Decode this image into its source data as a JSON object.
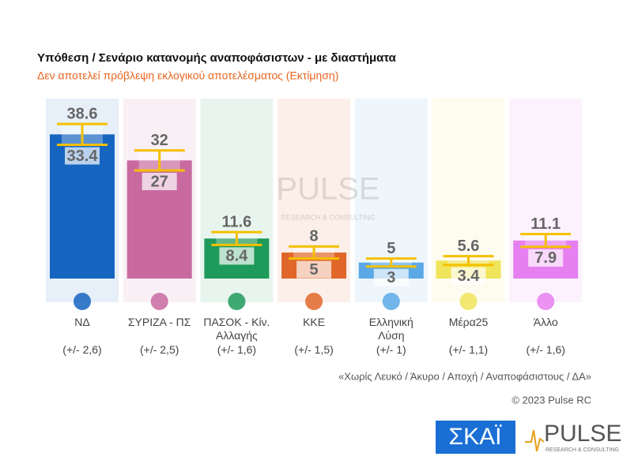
{
  "chart_data": {
    "type": "interval-bar",
    "title": "Υπόθεση / Σενάριο κατανομής αναποφάσιστων - με διαστήματα",
    "subtitle": "Δεν αποτελεί πρόβλεψη εκλογικού αποτελέσματος   (Εκτίμηση)",
    "categories": [
      "ΝΔ",
      "ΣΥΡΙΖΑ - ΠΣ",
      "ΠΑΣΟΚ - Κίν. Αλλαγής",
      "ΚΚΕ",
      "Ελληνική Λύση",
      "Μέρα25",
      "Άλλο"
    ],
    "values": [
      36,
      29.5,
      10,
      6.5,
      4,
      4.5,
      9.5
    ],
    "high": [
      38.6,
      32,
      11.6,
      8,
      5,
      5.6,
      11.1
    ],
    "low": [
      33.4,
      27,
      8.4,
      5,
      3,
      3.4,
      7.9
    ],
    "error_labels": [
      "(+/- 2,6)",
      "(+/- 2,5)",
      "(+/- 1,6)",
      "(+/- 1,5)",
      "(+/- 1)",
      "(+/- 1,1)",
      "(+/- 1,6)"
    ],
    "colors": [
      "#1565c0",
      "#c86aa0",
      "#1e9a5a",
      "#e0662a",
      "#5aa9e6",
      "#f0e45a",
      "#e680f0"
    ],
    "whisker_color": "#f5c000",
    "ylim": [
      0,
      40
    ],
    "footnote": "«Χωρίς Λευκό / Άκυρο / Αποχή / Αναποφάσιστους / ΔΑ»",
    "copyright": "© 2023 Pulse RC"
  },
  "logos": {
    "skai": "ΣΚΑΪ",
    "pulse": "PULSE",
    "pulse_sub": "RESEARCH & CONSULTING"
  }
}
